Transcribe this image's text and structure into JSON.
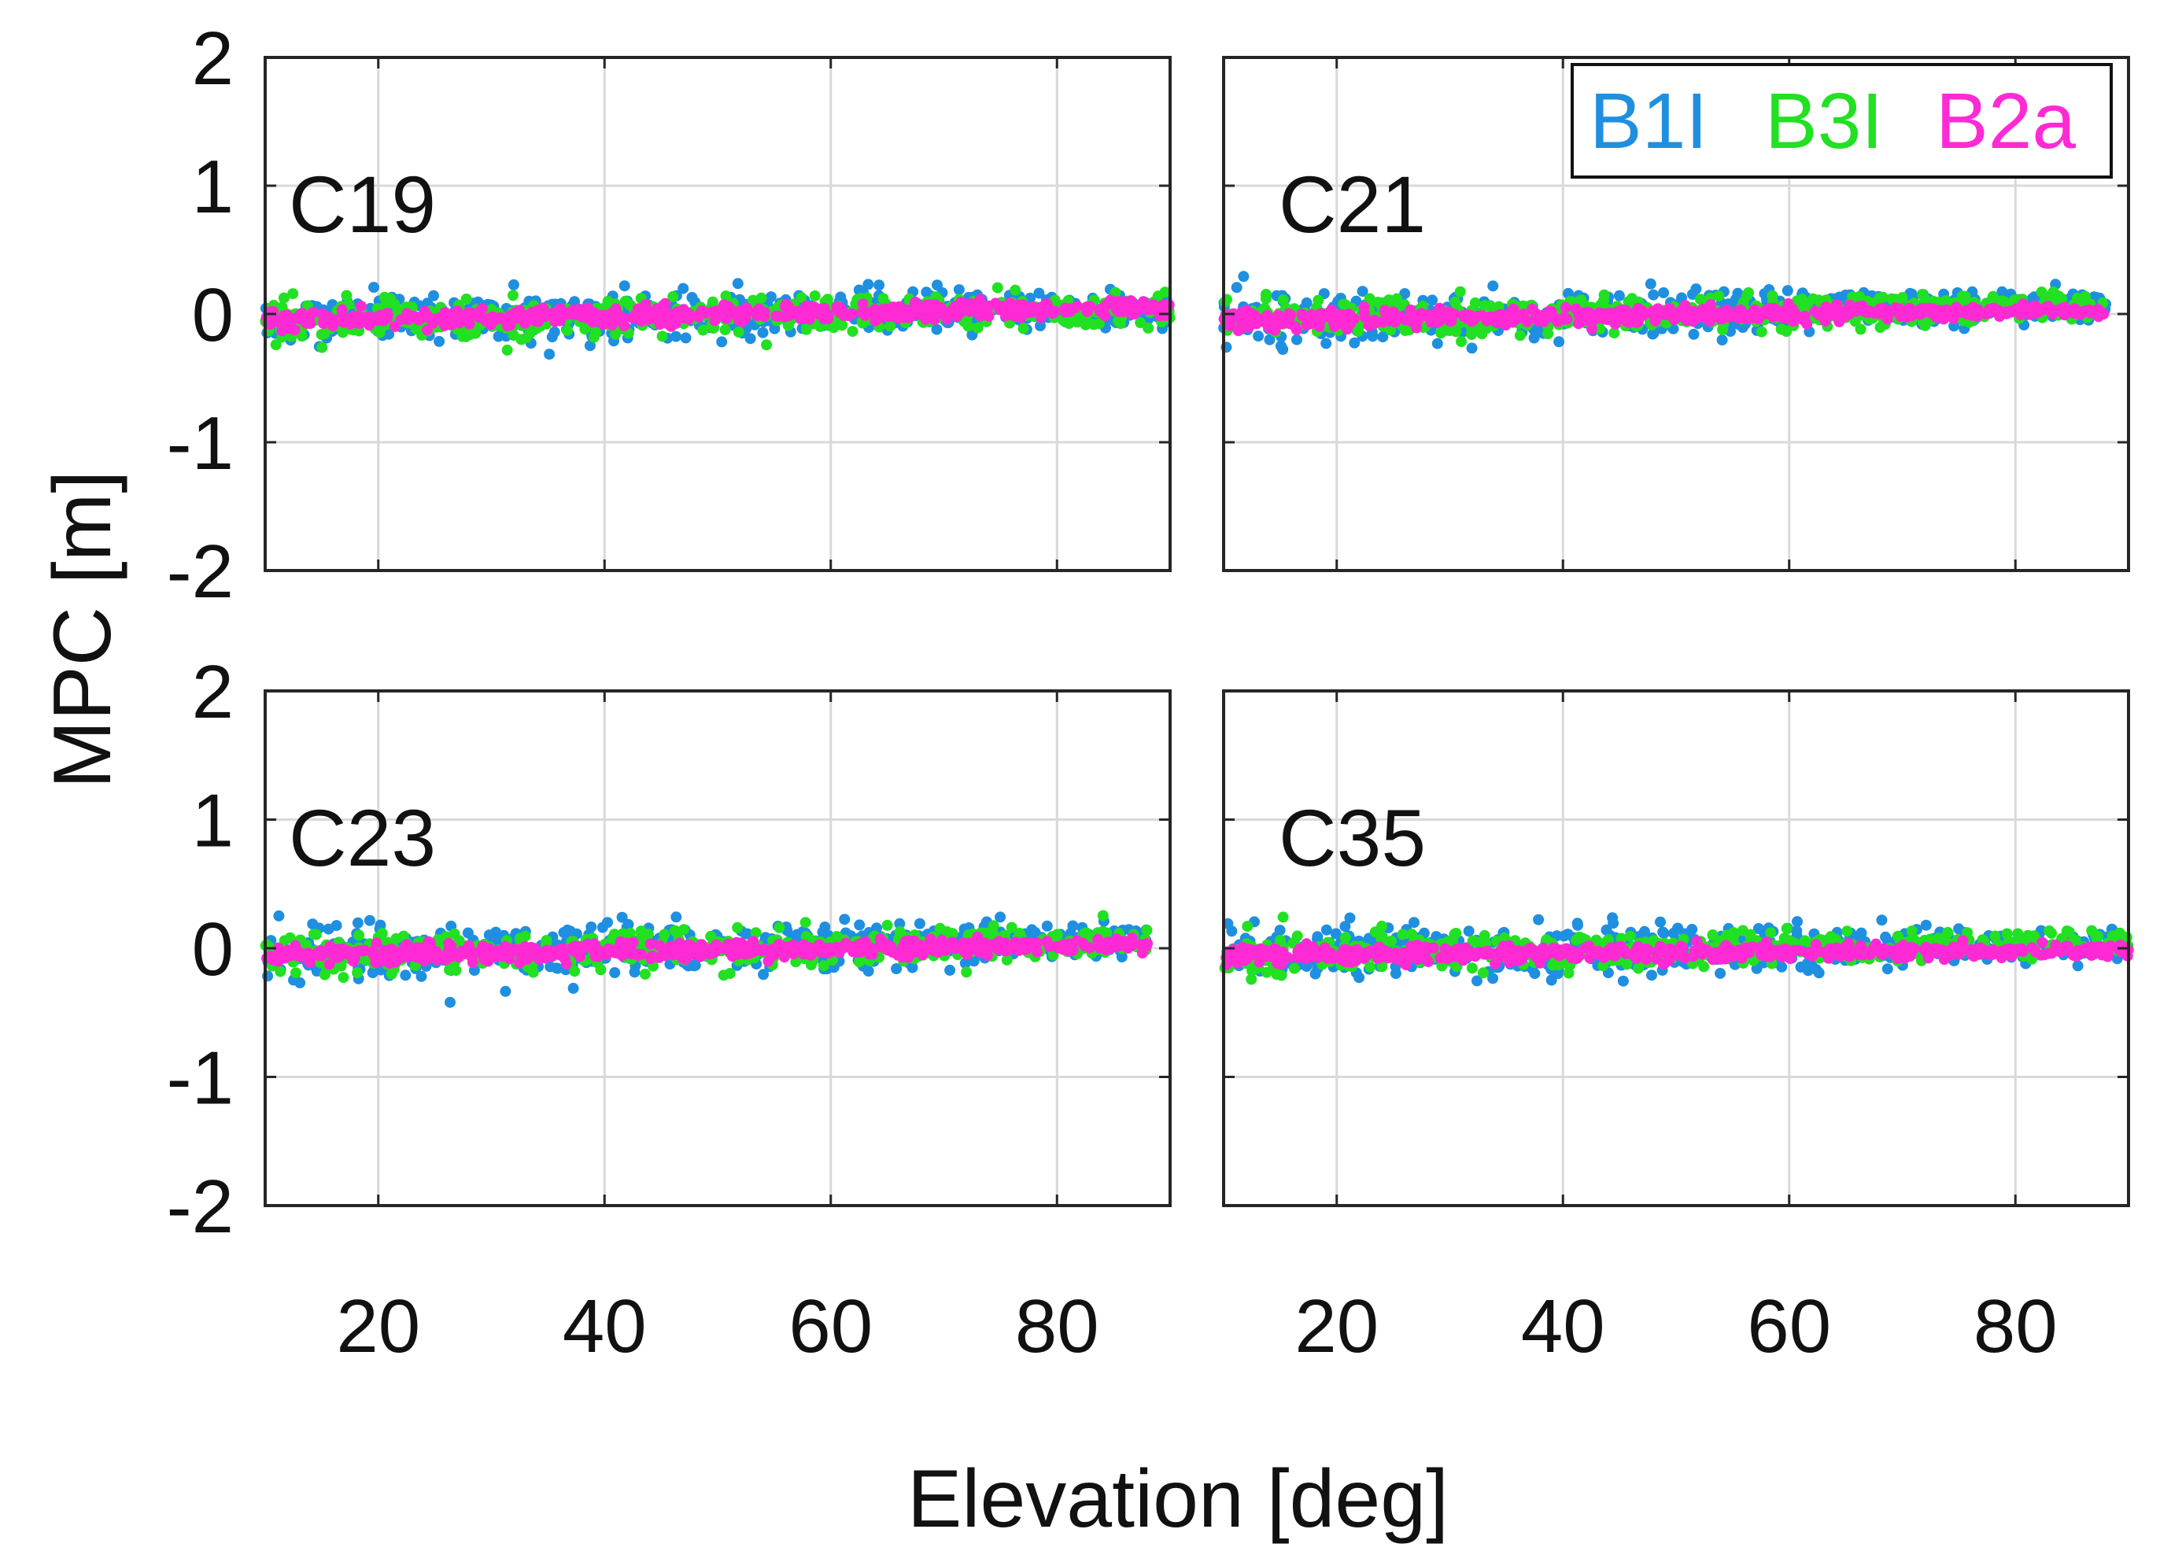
{
  "chart_data": {
    "type": "scatter",
    "xlabel": "Elevation [deg]",
    "ylabel": "MPC [m]",
    "xlim": [
      10,
      90
    ],
    "ylim": [
      -2,
      2
    ],
    "xticks": [
      20,
      40,
      60,
      80
    ],
    "yticks": [
      2,
      1,
      0,
      -1,
      -2
    ],
    "grid": true,
    "legend": {
      "placement": "top-right of upper-right panel",
      "entries": [
        {
          "name": "B1I",
          "label": "B1I",
          "color": "#1f8fe0"
        },
        {
          "name": "B3I",
          "label": "B3I",
          "color": "#22e022"
        },
        {
          "name": "B2a",
          "label": "B2a",
          "color": "#ff2ad4"
        }
      ]
    },
    "panels": [
      {
        "label": "C19",
        "x_range": [
          10,
          90
        ],
        "series": [
          {
            "name": "B1I",
            "noise_start": 0.22,
            "noise_end": 0.16,
            "trend_start": -0.05,
            "trend_end": 0.05
          },
          {
            "name": "B3I",
            "noise_start": 0.18,
            "noise_end": 0.14,
            "trend_start": -0.05,
            "trend_end": 0.03
          },
          {
            "name": "B2a",
            "noise_start": 0.08,
            "noise_end": 0.06,
            "trend_start": -0.05,
            "trend_end": 0.05
          }
        ]
      },
      {
        "label": "C21",
        "x_range": [
          10,
          88
        ],
        "series": [
          {
            "name": "B1I",
            "noise_start": 0.24,
            "noise_end": 0.12,
            "trend_start": -0.04,
            "trend_end": 0.08
          },
          {
            "name": "B3I",
            "noise_start": 0.18,
            "noise_end": 0.1,
            "trend_start": -0.04,
            "trend_end": 0.06
          },
          {
            "name": "B2a",
            "noise_start": 0.08,
            "noise_end": 0.05,
            "trend_start": -0.05,
            "trend_end": 0.03
          }
        ]
      },
      {
        "label": "C23",
        "x_range": [
          10,
          88
        ],
        "series": [
          {
            "name": "B1I",
            "noise_start": 0.24,
            "noise_end": 0.16,
            "trend_start": -0.05,
            "trend_end": 0.06
          },
          {
            "name": "B3I",
            "noise_start": 0.18,
            "noise_end": 0.12,
            "trend_start": -0.05,
            "trend_end": 0.05
          },
          {
            "name": "B2a",
            "noise_start": 0.08,
            "noise_end": 0.06,
            "trend_start": -0.06,
            "trend_end": 0.03
          }
        ]
      },
      {
        "label": "C35",
        "x_range": [
          10,
          90
        ],
        "series": [
          {
            "name": "B1I",
            "noise_start": 0.24,
            "noise_end": 0.14,
            "trend_start": -0.05,
            "trend_end": 0.04
          },
          {
            "name": "B3I",
            "noise_start": 0.18,
            "noise_end": 0.1,
            "trend_start": -0.05,
            "trend_end": 0.03
          },
          {
            "name": "B2a",
            "noise_start": 0.08,
            "noise_end": 0.05,
            "trend_start": -0.05,
            "trend_end": -0.02
          }
        ]
      }
    ]
  }
}
